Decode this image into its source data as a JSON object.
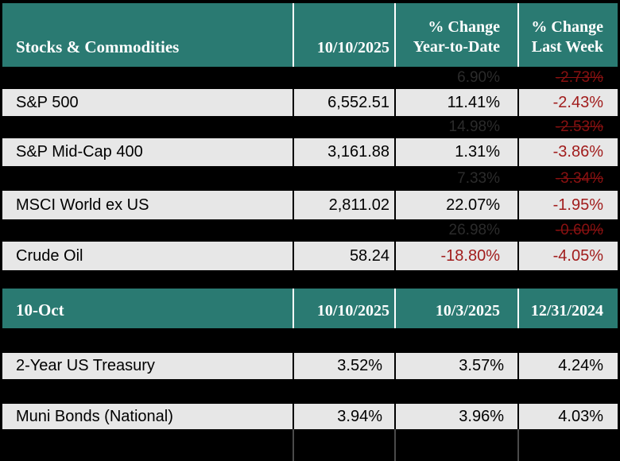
{
  "palette": {
    "header_teal": "#2A7A72",
    "row_gray": "#E7E7E7",
    "background_black": "#000000",
    "negative_red": "#A11C1C",
    "redacted_red": "#8A1111",
    "redacted_gray": "#2B2B2B"
  },
  "chart_data": [
    {
      "type": "table",
      "title": "Stocks & Commodities",
      "column_headers": [
        "10/10/2025",
        "% Change Year-to-Date",
        "% Change Last Week"
      ],
      "header_lines": {
        "date": "10/10/2025",
        "ytd_1": "% Change",
        "ytd_2": "Year-to-Date",
        "week_1": "% Change",
        "week_2": "Last Week"
      },
      "rows": [
        {
          "redacted": true,
          "label": "",
          "value": "",
          "ytd": "6.90%",
          "week": "-2.73%"
        },
        {
          "redacted": false,
          "label": "S&P 500",
          "value": "6,552.51",
          "ytd": "11.41%",
          "week": "-2.43%"
        },
        {
          "redacted": true,
          "label": "",
          "value": "",
          "ytd": "14.98%",
          "week": "-2.53%"
        },
        {
          "redacted": false,
          "label": "S&P Mid-Cap 400",
          "value": "3,161.88",
          "ytd": "1.31%",
          "week": "-3.86%"
        },
        {
          "redacted": true,
          "label": "",
          "value": "",
          "ytd": "7.33%",
          "week": "-3.34%"
        },
        {
          "redacted": false,
          "label": "MSCI World ex US",
          "value": "2,811.02",
          "ytd": "22.07%",
          "week": "-1.95%"
        },
        {
          "redacted": true,
          "label": "",
          "value": "",
          "ytd": "26.98%",
          "week": "-0.60%"
        },
        {
          "redacted": false,
          "label": "Crude Oil",
          "value": "58.24",
          "ytd": "-18.80%",
          "week": "-4.05%"
        }
      ]
    },
    {
      "type": "table",
      "title": "10-Oct",
      "column_headers": [
        "10/10/2025",
        "10/3/2025",
        "12/31/2024"
      ],
      "rows": [
        {
          "label": "2-Year US Treasury",
          "v1": "3.52%",
          "v2": "3.57%",
          "v3": "4.24%"
        },
        {
          "label": "Muni Bonds (National)",
          "v1": "3.94%",
          "v2": "3.96%",
          "v3": "4.03%"
        }
      ]
    }
  ]
}
